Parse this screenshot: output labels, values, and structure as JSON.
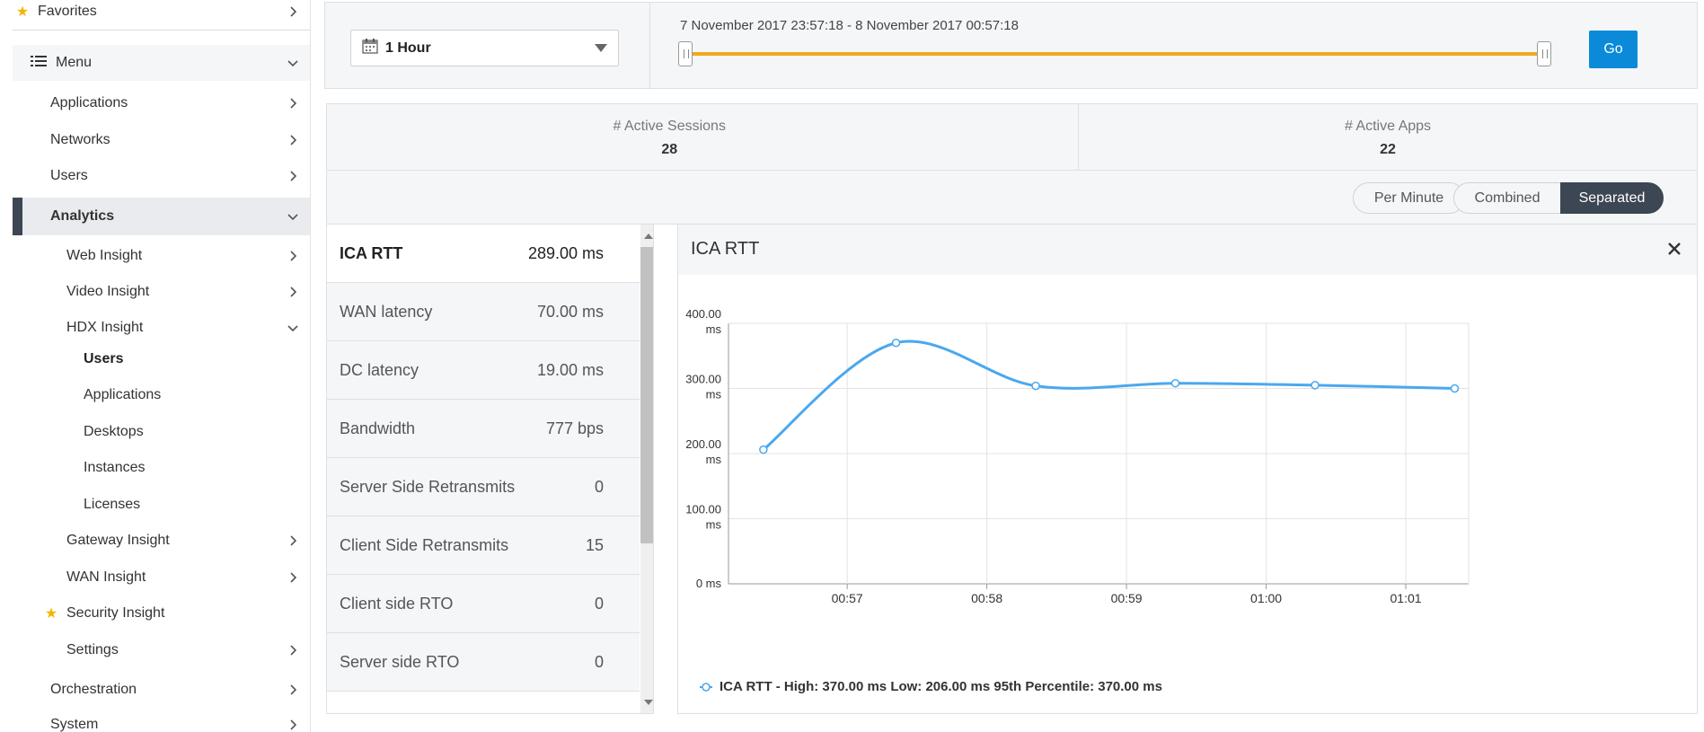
{
  "sidebar": {
    "favorites": "Favorites",
    "menu": "Menu",
    "items": {
      "applications": "Applications",
      "networks": "Networks",
      "users": "Users",
      "analytics": "Analytics",
      "web_insight": "Web Insight",
      "video_insight": "Video Insight",
      "hdx_insight": "HDX Insight",
      "hdx_users": "Users",
      "hdx_applications": "Applications",
      "hdx_desktops": "Desktops",
      "hdx_instances": "Instances",
      "hdx_licenses": "Licenses",
      "gateway_insight": "Gateway Insight",
      "wan_insight": "WAN Insight",
      "security_insight": "Security Insight",
      "settings": "Settings",
      "orchestration": "Orchestration",
      "system": "System"
    }
  },
  "toolbar": {
    "time_select": "1 Hour",
    "range_text": "7 November 2017 23:57:18 - 8 November 2017 00:57:18",
    "go_label": "Go"
  },
  "stats": {
    "sessions_label": "# Active Sessions",
    "sessions_value": "28",
    "apps_label": "# Active Apps",
    "apps_value": "22"
  },
  "options": {
    "per_minute": "Per Minute",
    "combined": "Combined",
    "separated": "Separated"
  },
  "metrics": [
    {
      "name": "ICA RTT",
      "value": "289.00 ms"
    },
    {
      "name": "WAN latency",
      "value": "70.00 ms"
    },
    {
      "name": "DC latency",
      "value": "19.00 ms"
    },
    {
      "name": "Bandwidth",
      "value": "777 bps"
    },
    {
      "name": "Server Side Retransmits",
      "value": "0"
    },
    {
      "name": "Client Side Retransmits",
      "value": "15"
    },
    {
      "name": "Client side RTO",
      "value": "0"
    },
    {
      "name": "Server side RTO",
      "value": "0"
    }
  ],
  "chart_panel": {
    "title": "ICA RTT",
    "legend": "ICA RTT - High: 370.00 ms Low: 206.00 ms 95th Percentile: 370.00 ms"
  },
  "colors": {
    "series": "#4aa8ee",
    "accent_track": "#f0a81c",
    "go_button": "#0a8ad8",
    "active_toggle": "#3d4653"
  },
  "chart_data": {
    "type": "line",
    "title": "ICA RTT",
    "xlabel": "",
    "ylabel": "",
    "ylim": [
      0,
      400
    ],
    "y_ticks": [
      "0 ms",
      "100.00 ms",
      "200.00 ms",
      "300.00 ms",
      "400.00 ms"
    ],
    "x_ticks": [
      "00:57",
      "00:58",
      "00:59",
      "01:00",
      "01:01"
    ],
    "grid": true,
    "legend_position": "bottom-left",
    "series": [
      {
        "name": "ICA RTT",
        "x": [
          "00:56:25",
          "00:57:21",
          "00:58:21",
          "00:59:21",
          "01:00:21",
          "01:01:21"
        ],
        "x_minutes": [
          56.4,
          57.35,
          58.35,
          59.35,
          60.35,
          61.35
        ],
        "values": [
          206,
          370,
          304,
          308,
          305,
          300
        ]
      }
    ]
  }
}
